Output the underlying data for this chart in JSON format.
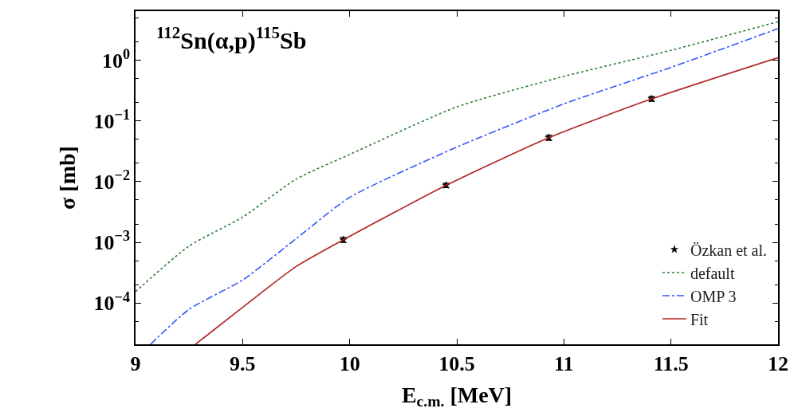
{
  "chart_data": {
    "type": "line",
    "title": "$^{112}$Sn(α,p)$^{115}$Sb",
    "xlabel": "E$_{c.m.}$ [MeV]",
    "ylabel": "σ [mb]",
    "log": "y",
    "xlim": [
      9,
      12
    ],
    "xticks": [
      9,
      9.5,
      10,
      10.5,
      11,
      11.5,
      12
    ],
    "ylim": [
      2.1e-05,
      6.4
    ],
    "yticks": [
      {
        "value": 0.0001,
        "label": "10$^{−4}$"
      },
      {
        "value": 0.001,
        "label": "10$^{−3}$"
      },
      {
        "value": 0.01,
        "label": "10$^{−2}$"
      },
      {
        "value": 0.1,
        "label": "10$^{−1}$"
      },
      {
        "value": 1,
        "label": "10$^{0}$"
      }
    ],
    "legend": "bottom right",
    "series": [
      {
        "name": "Özkan et al.",
        "type": "scatter",
        "marker": "star",
        "color": "#000000",
        "x": [
          9.97,
          10.45,
          10.93,
          11.41
        ],
        "values": [
          0.0011,
          0.0087,
          0.053,
          0.23
        ],
        "errors": [
          0.0001,
          0.0007,
          0.005,
          0.02
        ]
      },
      {
        "name": "default",
        "line_style": "dotted",
        "color": "#2e7d32",
        "x": [
          9,
          9.25,
          9.5,
          9.75,
          10,
          10.5,
          11,
          11.5,
          12
        ],
        "values": [
          0.000155,
          0.00087,
          0.0026,
          0.011,
          0.028,
          0.17,
          0.54,
          1.45,
          4.3
        ]
      },
      {
        "name": "OMP 3",
        "line_style": "dashed",
        "color": "#3355ff",
        "x": [
          9.07,
          9.25,
          9.5,
          9.75,
          10,
          10.5,
          11,
          11.5,
          12
        ],
        "values": [
          2.1e-05,
          7.9e-05,
          0.00024,
          0.00115,
          0.0055,
          0.037,
          0.19,
          0.76,
          3.3
        ]
      },
      {
        "name": "Fit",
        "line_style": "solid",
        "color": "#b22222",
        "x": [
          9.28,
          9.5,
          9.75,
          9.97,
          10.45,
          10.93,
          11.41,
          12
        ],
        "values": [
          2.1e-05,
          8.5e-05,
          0.0004,
          0.0011,
          0.0087,
          0.053,
          0.23,
          1.1
        ]
      }
    ]
  }
}
